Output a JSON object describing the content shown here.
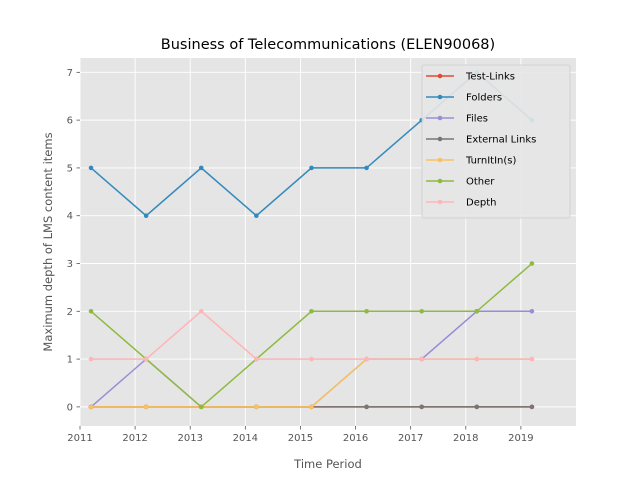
{
  "chart_data": {
    "type": "line",
    "title": "Business of Telecommunications (ELEN90068)",
    "xlabel": "Time Period",
    "ylabel": "Maximum depth of LMS content items",
    "xlim": [
      2011,
      2020
    ],
    "ylim": [
      -0.4,
      7.3
    ],
    "x_ticks": [
      "2011",
      "2012",
      "2013",
      "2014",
      "2015",
      "2016",
      "2017",
      "2018",
      "2019"
    ],
    "y_ticks": [
      "0",
      "1",
      "2",
      "3",
      "4",
      "5",
      "6",
      "7"
    ],
    "grid": true,
    "legend_position": "top-right",
    "x": [
      2011.2,
      2012.2,
      2013.2,
      2014.2,
      2015.2,
      2016.2,
      2017.2,
      2018.2,
      2019.2
    ],
    "series": [
      {
        "name": "Test-Links",
        "color": "#e24a33",
        "values": [
          0,
          0,
          0,
          0,
          0,
          0,
          0,
          0,
          0
        ]
      },
      {
        "name": "Folders",
        "color": "#348abd",
        "values": [
          5,
          4,
          5,
          4,
          5,
          5,
          6,
          7,
          6
        ]
      },
      {
        "name": "Files",
        "color": "#988ed5",
        "values": [
          0,
          1,
          0,
          0,
          0,
          1,
          1,
          2,
          2
        ]
      },
      {
        "name": "External Links",
        "color": "#777777",
        "values": [
          0,
          0,
          0,
          0,
          0,
          0,
          0,
          0,
          0
        ]
      },
      {
        "name": "TurnItIn(s)",
        "color": "#fbc15e",
        "values": [
          0,
          0,
          0,
          0,
          0,
          1,
          1,
          1,
          1
        ]
      },
      {
        "name": "Other",
        "color": "#8eba42",
        "values": [
          2,
          1,
          0,
          1,
          2,
          2,
          2,
          2,
          3
        ]
      },
      {
        "name": "Depth",
        "color": "#ffb5b8",
        "values": [
          1,
          1,
          2,
          1,
          1,
          1,
          1,
          1,
          1
        ]
      }
    ]
  }
}
